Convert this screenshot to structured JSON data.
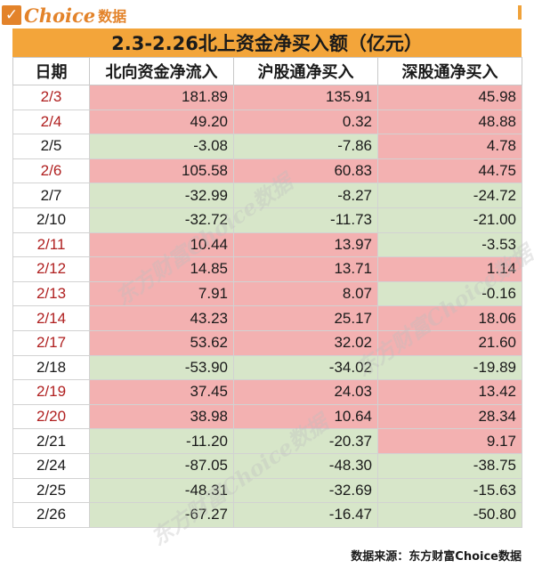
{
  "logo": {
    "check": "✓",
    "brand": "Choice",
    "sub": "数据"
  },
  "title": "2.3-2.26北上资金净买入额（亿元）",
  "columns": [
    "日期",
    "北向资金净流入",
    "沪股通净买入",
    "深股通净买入"
  ],
  "rows": [
    {
      "date": "2/3",
      "north": "181.89",
      "sh": "135.91",
      "sz": "45.98"
    },
    {
      "date": "2/4",
      "north": "49.20",
      "sh": "0.32",
      "sz": "48.88"
    },
    {
      "date": "2/5",
      "north": "-3.08",
      "sh": "-7.86",
      "sz": "4.78"
    },
    {
      "date": "2/6",
      "north": "105.58",
      "sh": "60.83",
      "sz": "44.75"
    },
    {
      "date": "2/7",
      "north": "-32.99",
      "sh": "-8.27",
      "sz": "-24.72"
    },
    {
      "date": "2/10",
      "north": "-32.72",
      "sh": "-11.73",
      "sz": "-21.00"
    },
    {
      "date": "2/11",
      "north": "10.44",
      "sh": "13.97",
      "sz": "-3.53"
    },
    {
      "date": "2/12",
      "north": "14.85",
      "sh": "13.71",
      "sz": "1.14"
    },
    {
      "date": "2/13",
      "north": "7.91",
      "sh": "8.07",
      "sz": "-0.16"
    },
    {
      "date": "2/14",
      "north": "43.23",
      "sh": "25.17",
      "sz": "18.06"
    },
    {
      "date": "2/17",
      "north": "53.62",
      "sh": "32.02",
      "sz": "21.60"
    },
    {
      "date": "2/18",
      "north": "-53.90",
      "sh": "-34.02",
      "sz": "-19.89"
    },
    {
      "date": "2/19",
      "north": "37.45",
      "sh": "24.03",
      "sz": "13.42"
    },
    {
      "date": "2/20",
      "north": "38.98",
      "sh": "10.64",
      "sz": "28.34"
    },
    {
      "date": "2/21",
      "north": "-11.20",
      "sh": "-20.37",
      "sz": "9.17"
    },
    {
      "date": "2/24",
      "north": "-87.05",
      "sh": "-48.30",
      "sz": "-38.75"
    },
    {
      "date": "2/25",
      "north": "-48.31",
      "sh": "-32.69",
      "sz": "-15.63"
    },
    {
      "date": "2/26",
      "north": "-67.27",
      "sh": "-16.47",
      "sz": "-50.80"
    }
  ],
  "footer": "数据来源：东方财富Choice数据",
  "watermark": "东方财富Choice数据",
  "colors": {
    "positive_fill": "#f3b1b1",
    "negative_fill": "#d7e6c9",
    "header_bar": "#f3a53a",
    "brand": "#e3832a",
    "date_red": "#b02020"
  }
}
